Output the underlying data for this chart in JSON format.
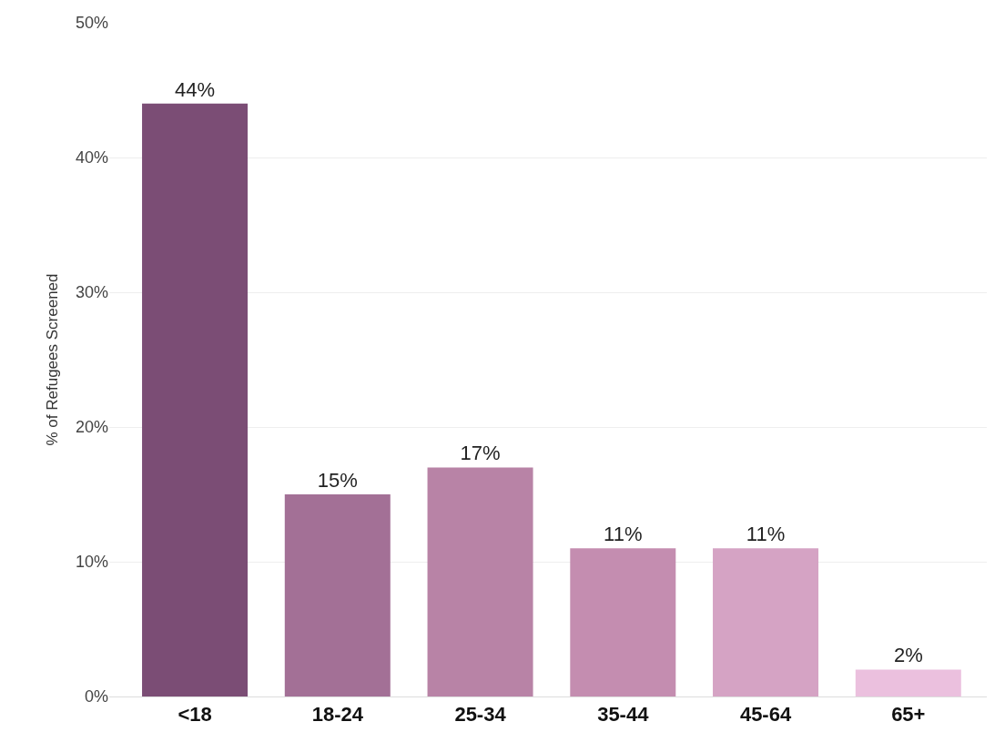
{
  "chart_data": {
    "type": "bar",
    "ylabel": "% of Refugees Screened",
    "categories": [
      "<18",
      "18-24",
      "25-34",
      "35-44",
      "45-64",
      "65+"
    ],
    "values": [
      44,
      15,
      17,
      11,
      11,
      2
    ],
    "value_labels": [
      "44%",
      "15%",
      "17%",
      "11%",
      "11%",
      "2%"
    ],
    "colors": [
      "#7b4d75",
      "#a37096",
      "#b883a6",
      "#c48db0",
      "#d5a3c4",
      "#ebc0de"
    ],
    "ylim": [
      0,
      50
    ],
    "yticks": [
      {
        "value": 0,
        "label": "0%"
      },
      {
        "value": 10,
        "label": "10%"
      },
      {
        "value": 20,
        "label": "20%"
      },
      {
        "value": 30,
        "label": "30%"
      },
      {
        "value": 40,
        "label": "40%"
      },
      {
        "value": 50,
        "label": "50%"
      }
    ],
    "grid": "y"
  }
}
